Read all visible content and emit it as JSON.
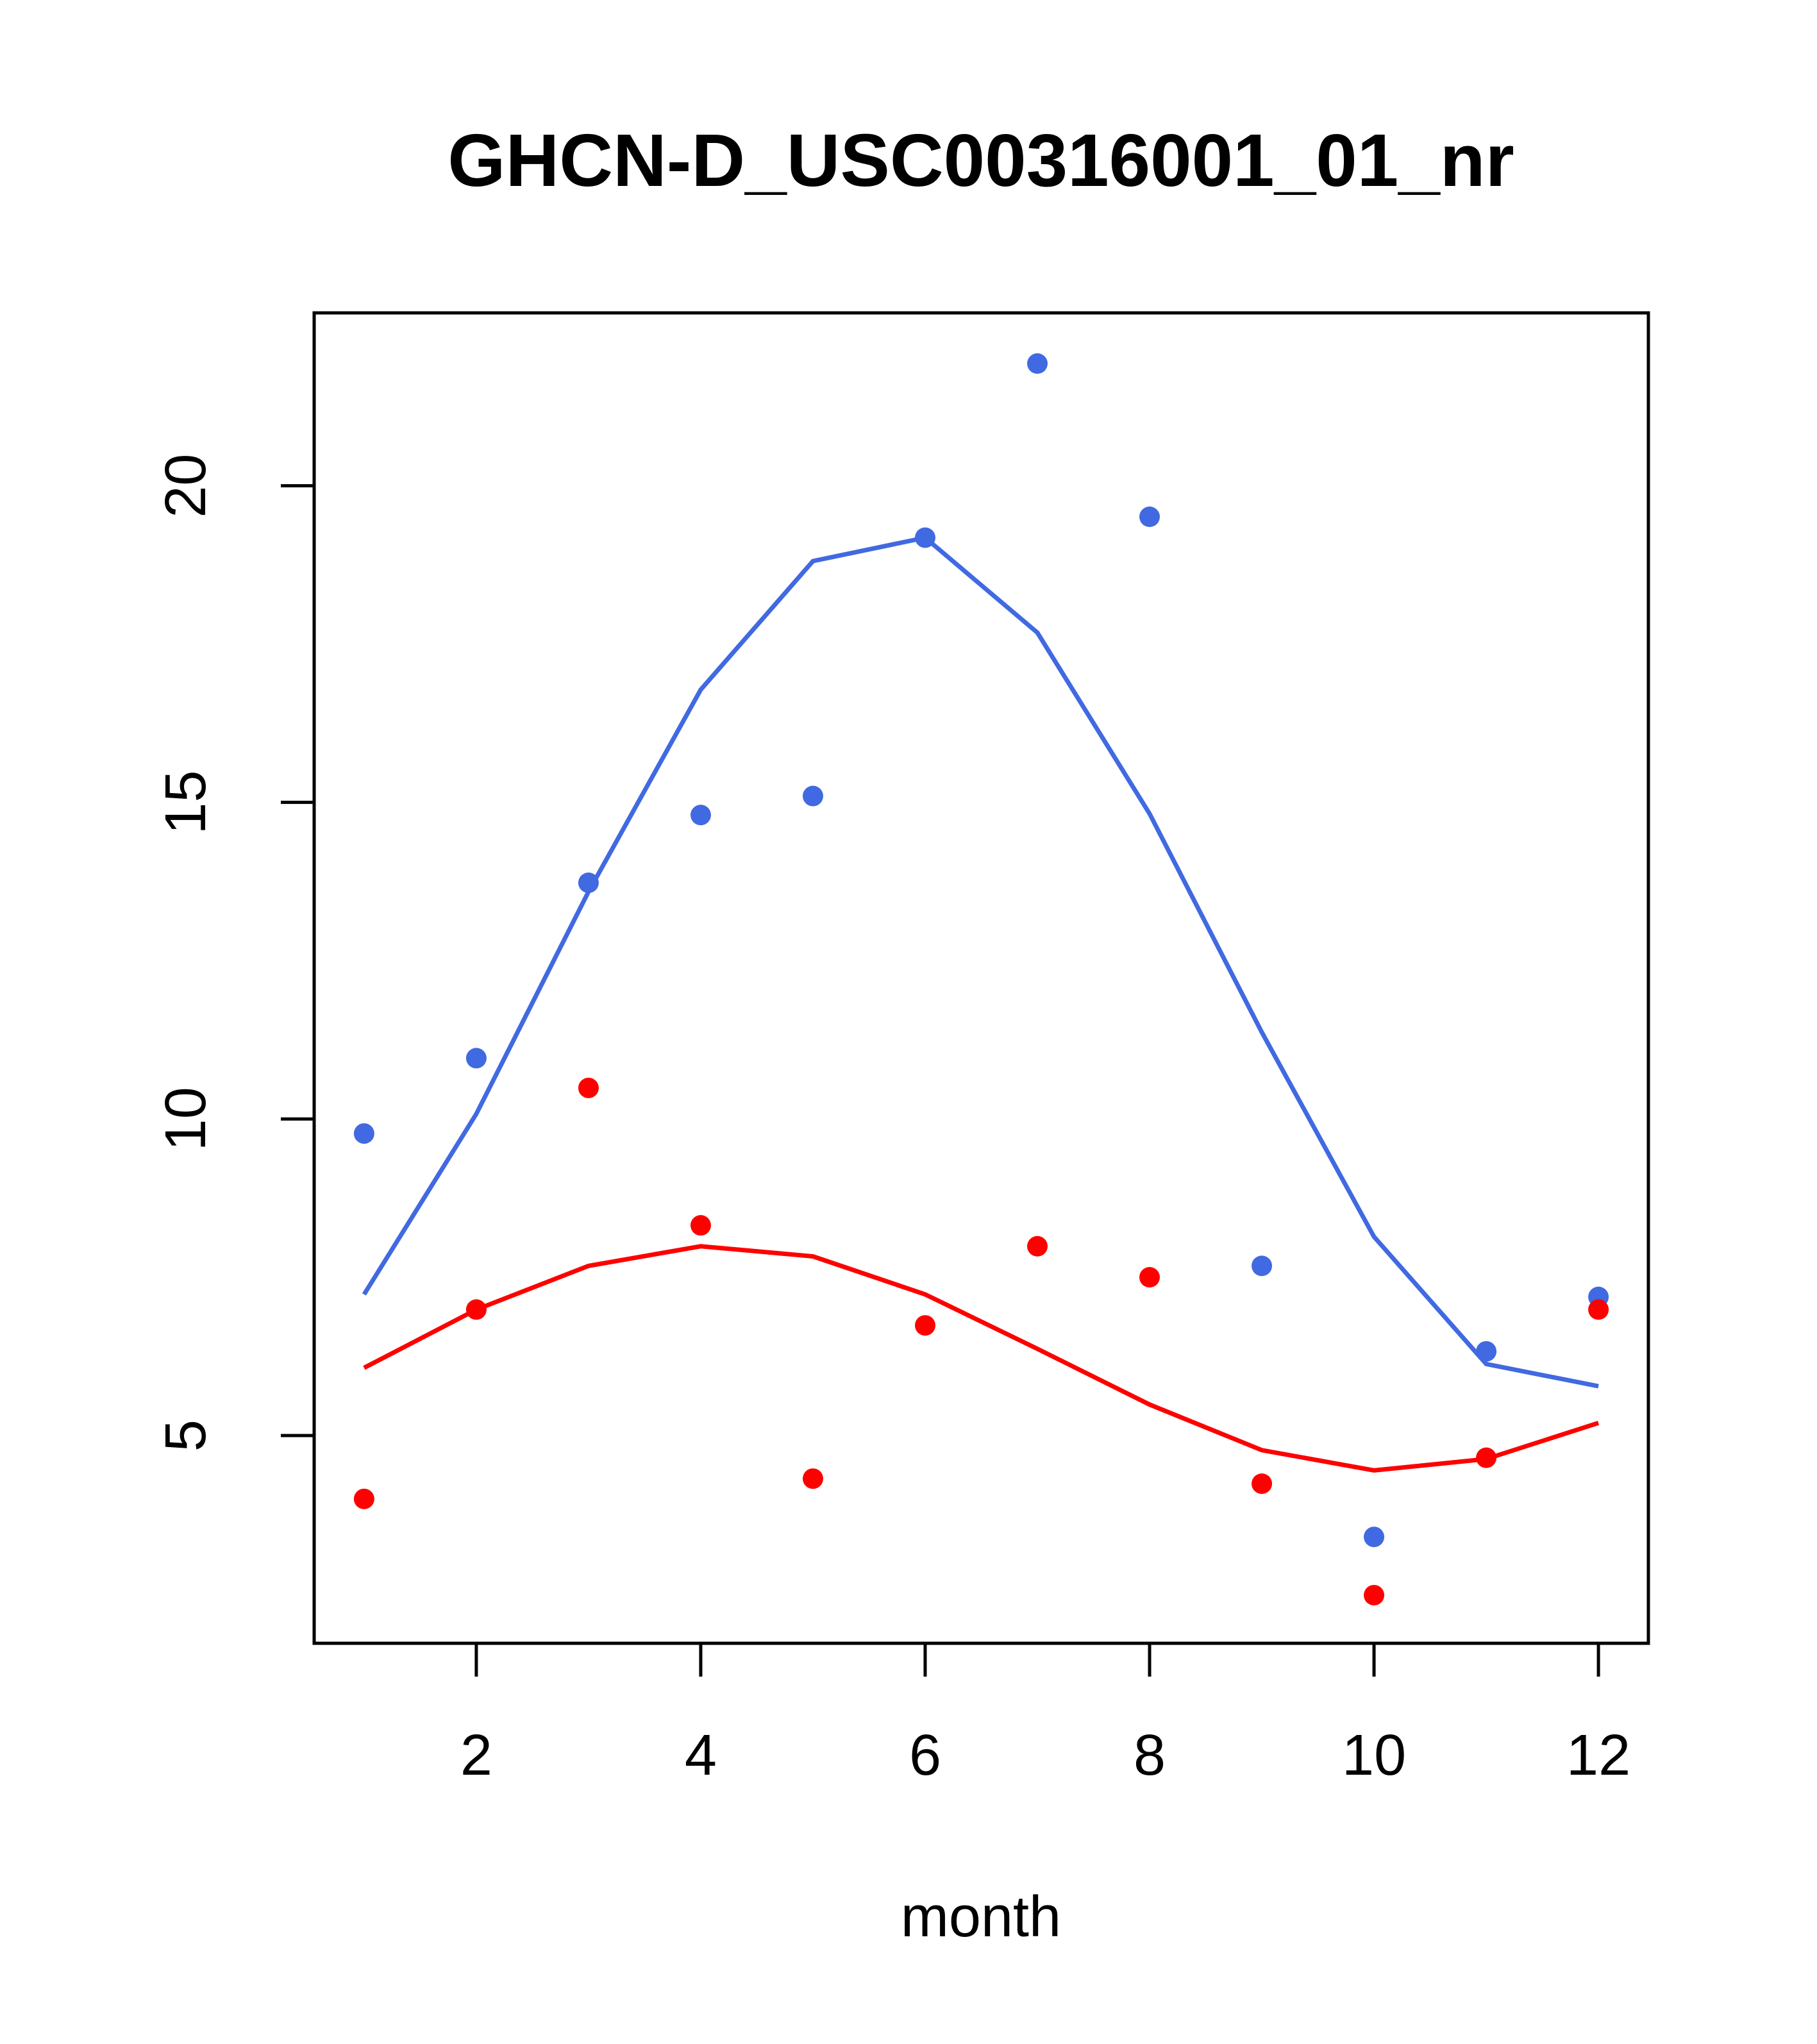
{
  "chart_data": {
    "type": "scatter",
    "title": "GHCN-D_USC00316001_01_nr",
    "xlabel": "month",
    "ylabel": "",
    "xlim": [
      0.555,
      12.445
    ],
    "ylim": [
      1.72,
      22.73
    ],
    "xticks": [
      2,
      4,
      6,
      8,
      10,
      12
    ],
    "yticks": [
      5,
      10,
      15,
      20
    ],
    "grid": false,
    "x": [
      1,
      2,
      3,
      4,
      5,
      6,
      7,
      8,
      9,
      10,
      11,
      12
    ],
    "series": [
      {
        "name": "blue points",
        "kind": "points",
        "color": "#4169E1",
        "values": [
          9.77,
          10.96,
          13.73,
          14.8,
          15.1,
          19.18,
          21.93,
          19.51,
          7.68,
          3.4,
          6.33,
          7.19
        ]
      },
      {
        "name": "blue smooth",
        "kind": "line",
        "color": "#4169E1",
        "values": [
          7.23,
          10.08,
          13.59,
          16.78,
          18.81,
          19.18,
          17.68,
          14.82,
          11.37,
          8.14,
          6.13,
          5.78
        ]
      },
      {
        "name": "red points",
        "kind": "points",
        "color": "#FF0000",
        "values": [
          4.0,
          6.99,
          10.49,
          8.32,
          4.32,
          6.74,
          7.99,
          7.5,
          4.24,
          2.48,
          4.65,
          6.99
        ]
      },
      {
        "name": "red smooth",
        "kind": "line",
        "color": "#FF0000",
        "values": [
          6.07,
          6.99,
          7.68,
          7.99,
          7.83,
          7.23,
          6.37,
          5.49,
          4.77,
          4.45,
          4.63,
          5.2
        ]
      }
    ]
  }
}
